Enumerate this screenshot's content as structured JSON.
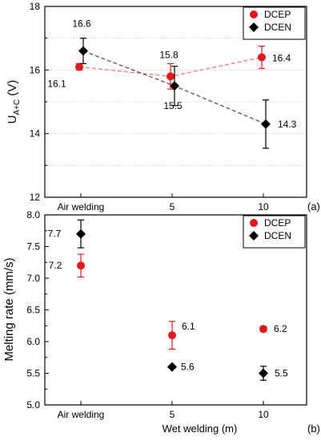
{
  "chart_data": [
    {
      "type": "scatter",
      "panel_label": "(a)",
      "ylabel": {
        "main": "U",
        "sub": "A+C",
        "unit": " (V)"
      },
      "xlabel": "",
      "categories": [
        "Air welding",
        "5",
        "10"
      ],
      "ylim": [
        12,
        18
      ],
      "yticks": [
        "12",
        "14",
        "16",
        "18"
      ],
      "grid": "dotted horizontal",
      "legend_placement": "top-right",
      "series": [
        {
          "name": "DCEP",
          "color": "#e8161b",
          "marker": "circle",
          "values": [
            16.1,
            15.8,
            16.4
          ],
          "errors": [
            0.1,
            0.4,
            0.35
          ],
          "labels": [
            "16.1",
            "15.8",
            "16.4"
          ],
          "trend": "dashed"
        },
        {
          "name": "DCEN",
          "color": "#000000",
          "marker": "diamond",
          "values": [
            16.6,
            15.5,
            14.3
          ],
          "errors": [
            0.4,
            0.62,
            0.76
          ],
          "labels": [
            "16.6",
            "15.5",
            "14.3"
          ],
          "trend": "dashed"
        }
      ]
    },
    {
      "type": "scatter",
      "panel_label": "(b)",
      "ylabel": {
        "main": "Melting rate (mm/s)",
        "sub": "",
        "unit": ""
      },
      "xlabel": "Wet welding (m)",
      "categories": [
        "Air welding",
        "5",
        "10"
      ],
      "ylim": [
        5.0,
        8.0
      ],
      "yticks": [
        "5.0",
        "5.5",
        "6.0",
        "6.5",
        "7.0",
        "7.5",
        "8.0"
      ],
      "grid": "none",
      "legend_placement": "top-right",
      "series": [
        {
          "name": "DCEP",
          "color": "#e8161b",
          "marker": "circle",
          "values": [
            7.2,
            6.1,
            6.2
          ],
          "errors": [
            0.18,
            0.22,
            0.04
          ],
          "labels": [
            "7.2",
            "6.1",
            "6.2"
          ],
          "trend": "none"
        },
        {
          "name": "DCEN",
          "color": "#000000",
          "marker": "diamond",
          "values": [
            7.7,
            5.6,
            5.5
          ],
          "errors": [
            0.22,
            0.02,
            0.11
          ],
          "labels": [
            "7.7",
            "5.6",
            "5.5"
          ],
          "trend": "none"
        }
      ]
    }
  ]
}
